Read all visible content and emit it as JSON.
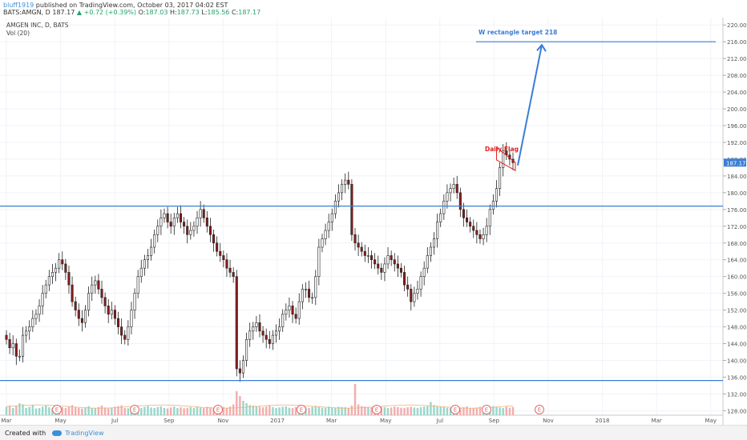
{
  "header": {
    "author": "bluff1919",
    "published": " published on TradingView.com, October 03, 2017 04:02 EST",
    "symbol": "BATS:AMGN, D",
    "last": "187.17",
    "change": "+0.72 (+0.39%)",
    "o_label": "O:",
    "o": "187.03",
    "h_label": "H:",
    "h": "187.73",
    "l_label": "L:",
    "l": "185.56",
    "c_label": "C:",
    "c": "187.17"
  },
  "legend": {
    "title": "AMGEN INC, D, BATS",
    "vol": "Vol (20)"
  },
  "footer": {
    "created_with": "Created with",
    "brand": "TradingView"
  },
  "colors": {
    "up": "#ffffff",
    "down": "#8b1a1a",
    "candle_border": "#222222",
    "hline": "#3b7dd8",
    "target_arrow": "#3b7dd8",
    "flag": "#e02020",
    "vol_up": "#8fd3c4",
    "vol_down": "#f2a5a5",
    "vol_ma": "#f0b37a"
  },
  "chart_data": {
    "type": "candlestick",
    "ylim": [
      127.5,
      221
    ],
    "y_ticks": [
      "220.00",
      "216.00",
      "212.00",
      "208.00",
      "204.00",
      "200.00",
      "196.00",
      "192.00",
      "188.00",
      "184.00",
      "180.00",
      "176.00",
      "172.00",
      "168.00",
      "164.00",
      "160.00",
      "156.00",
      "152.00",
      "148.00",
      "144.00",
      "140.00",
      "136.00",
      "132.00",
      "128.00"
    ],
    "x_ticks": [
      "Mar",
      "May",
      "Jul",
      "Sep",
      "Nov",
      "2017",
      "Mar",
      "May",
      "Jul",
      "Sep",
      "Nov",
      "2018",
      "Mar",
      "May"
    ],
    "earnings_markers": [
      "E",
      "E",
      "E",
      "E",
      "E",
      "E",
      "E",
      "E"
    ],
    "horizontal_levels": [
      176.8,
      135.2
    ],
    "target_level": 216,
    "annotations": [
      {
        "text": "Daily Flag",
        "type": "flag",
        "price": 190.5
      },
      {
        "text": "W rectangle target 218",
        "type": "target",
        "price": 218
      }
    ],
    "close_series": [
      145,
      143,
      144,
      141,
      141,
      146,
      147,
      148,
      150,
      151,
      153,
      156,
      158,
      160,
      161,
      162,
      164,
      163,
      161,
      158,
      154,
      152,
      150,
      149,
      152,
      156,
      158,
      159,
      157,
      155,
      153,
      151,
      152,
      150,
      148,
      146,
      145,
      148,
      152,
      156,
      160,
      162,
      164,
      165,
      167,
      170,
      172,
      174,
      175,
      173,
      172,
      174,
      175,
      173,
      172,
      170,
      171,
      172,
      174,
      176,
      174,
      172,
      170,
      168,
      166,
      165,
      164,
      162,
      161,
      160,
      138,
      137,
      140,
      145,
      147,
      148,
      149,
      147,
      146,
      145,
      144,
      146,
      147,
      148,
      151,
      152,
      153,
      151,
      150,
      154,
      157,
      157,
      155,
      155,
      160,
      167,
      169,
      171,
      173,
      175,
      178,
      180,
      182,
      183,
      182,
      170,
      168,
      167,
      166,
      165,
      165,
      164,
      163,
      162,
      161,
      163,
      165,
      164,
      163,
      162,
      161,
      158,
      157,
      154,
      156,
      157,
      160,
      162,
      165,
      167,
      169,
      173,
      175,
      178,
      180,
      181,
      182,
      180,
      176,
      174,
      173,
      172,
      171,
      170,
      169,
      170,
      172,
      176,
      178,
      181,
      186,
      190,
      189,
      188,
      187.17
    ],
    "volume_rel": [
      0.35,
      0.4,
      0.3,
      0.38,
      0.5,
      0.45,
      0.3,
      0.35,
      0.42,
      0.28,
      0.3,
      0.36,
      0.4,
      0.33,
      0.29,
      0.31,
      0.38,
      0.34,
      0.3,
      0.36,
      0.42,
      0.35,
      0.3,
      0.28,
      0.33,
      0.38,
      0.3,
      0.29,
      0.34,
      0.4,
      0.32,
      0.28,
      0.3,
      0.35,
      0.38,
      0.41,
      0.3,
      0.29,
      0.33,
      0.36,
      0.31,
      0.3,
      0.35,
      0.39,
      0.32,
      0.3,
      0.34,
      0.37,
      0.3,
      0.28,
      0.32,
      0.36,
      0.3,
      0.33,
      0.29,
      0.31,
      0.34,
      0.3,
      0.36,
      0.32,
      0.3,
      0.35,
      0.33,
      0.3,
      0.4,
      0.38,
      0.34,
      0.3,
      0.36,
      0.45,
      1.0,
      0.8,
      0.6,
      0.5,
      0.42,
      0.4,
      0.38,
      0.35,
      0.33,
      0.36,
      0.4,
      0.34,
      0.3,
      0.32,
      0.35,
      0.37,
      0.31,
      0.3,
      0.34,
      0.38,
      0.36,
      0.33,
      0.3,
      0.35,
      0.39,
      0.34,
      0.31,
      0.3,
      0.36,
      0.33,
      0.3,
      0.35,
      0.34,
      0.33,
      0.31,
      0.4,
      1.3,
      0.45,
      0.38,
      0.36,
      0.34,
      0.32,
      0.3,
      0.31,
      0.35,
      0.33,
      0.3,
      0.32,
      0.36,
      0.34,
      0.31,
      0.3,
      0.33,
      0.35,
      0.32,
      0.3,
      0.34,
      0.36,
      0.38,
      0.55,
      0.42,
      0.38,
      0.35,
      0.33,
      0.31,
      0.3,
      0.34,
      0.32,
      0.3,
      0.33,
      0.36,
      0.3,
      0.29,
      0.32,
      0.35,
      0.3,
      0.33,
      0.36,
      0.38,
      0.34,
      0.32,
      0.3,
      0.35,
      0.31,
      0.34
    ]
  }
}
